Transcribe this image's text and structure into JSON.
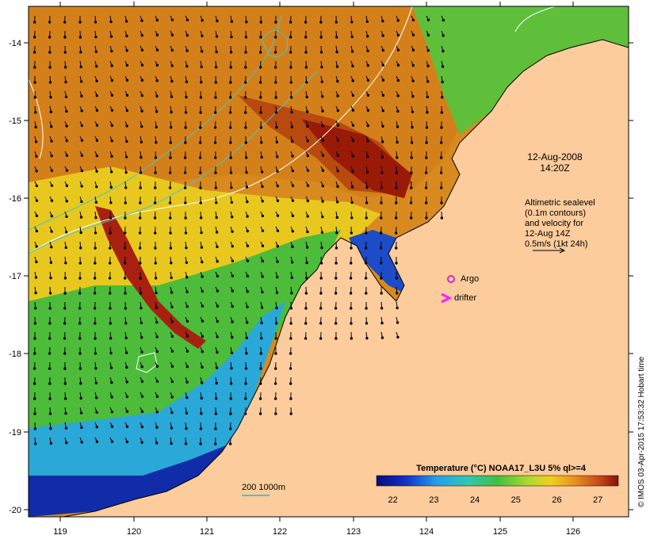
{
  "map": {
    "title_date": "12-Aug-2008",
    "title_time": "14:20Z",
    "altimetry_note": [
      "Altimetric sealevel",
      "(0.1m contours)",
      "and velocity for",
      "12-Aug 14Z",
      "0.5m/s (1kt 24h)"
    ],
    "legend_argo": "Argo",
    "legend_drifter": "drifter",
    "bathy_label": "200  1000m",
    "credit": "© IMOS 03-Apr-2015 17:53:32 Hobart time",
    "colorbar_title": "Temperature (°C) NOAA17_L3U 5% ql>=4",
    "colorbar_ticks": [
      "22",
      "23",
      "24",
      "25",
      "26",
      "27"
    ],
    "colorbar_range": [
      21.6,
      27.5
    ],
    "x_ticks": [
      "119",
      "120",
      "121",
      "122",
      "123",
      "124",
      "125",
      "126"
    ],
    "y_ticks": [
      "-14",
      "-15",
      "-16",
      "-17",
      "-18",
      "-19",
      "-20"
    ],
    "lon_range": [
      118.6,
      126.7
    ],
    "lat_range": [
      -20.1,
      -13.6
    ]
  },
  "colors": {
    "land": "#fccc9c",
    "coast": "#000000",
    "contour": "#ffffff",
    "bathy": "#44c8c8",
    "argo": "#d028d0",
    "drifter": "#ff20ff"
  }
}
